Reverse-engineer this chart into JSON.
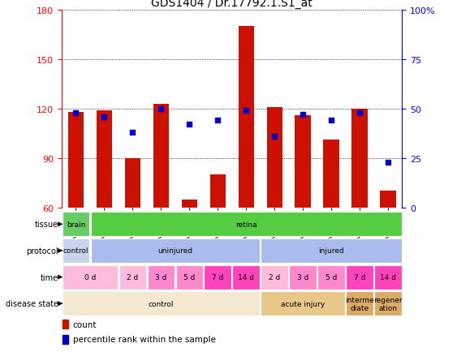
{
  "title": "GDS1404 / Dr.17792.1.S1_at",
  "samples": [
    "GSM74260",
    "GSM74261",
    "GSM74262",
    "GSM74282",
    "GSM74292",
    "GSM74286",
    "GSM74265",
    "GSM74264",
    "GSM74284",
    "GSM74295",
    "GSM74288",
    "GSM74267"
  ],
  "bar_heights": [
    118,
    119,
    90,
    123,
    65,
    80,
    170,
    121,
    116,
    101,
    120,
    70
  ],
  "percentile_values": [
    48,
    46,
    38,
    50,
    42,
    44,
    49,
    36,
    47,
    44,
    48,
    23
  ],
  "ylim_left": [
    60,
    180
  ],
  "ylim_right": [
    0,
    100
  ],
  "yticks_left": [
    60,
    90,
    120,
    150,
    180
  ],
  "yticks_right": [
    0,
    25,
    50,
    75,
    100
  ],
  "bar_color": "#cc1100",
  "dot_color": "#0000cc",
  "tissue_row": {
    "label": "tissue",
    "segments": [
      {
        "text": "brain",
        "start": 0,
        "end": 1,
        "color": "#66cc66"
      },
      {
        "text": "retina",
        "start": 1,
        "end": 12,
        "color": "#55cc44"
      }
    ]
  },
  "protocol_row": {
    "label": "protocol",
    "segments": [
      {
        "text": "control",
        "start": 0,
        "end": 1,
        "color": "#c8d4ee"
      },
      {
        "text": "uninjured",
        "start": 1,
        "end": 7,
        "color": "#aabbee"
      },
      {
        "text": "injured",
        "start": 7,
        "end": 12,
        "color": "#aabbee"
      }
    ]
  },
  "time_row": {
    "label": "time",
    "segments": [
      {
        "text": "0 d",
        "start": 0,
        "end": 2,
        "color": "#ffbbdd"
      },
      {
        "text": "2 d",
        "start": 2,
        "end": 3,
        "color": "#ffbbdd"
      },
      {
        "text": "3 d",
        "start": 3,
        "end": 4,
        "color": "#ff88cc"
      },
      {
        "text": "5 d",
        "start": 4,
        "end": 5,
        "color": "#ff88cc"
      },
      {
        "text": "7 d",
        "start": 5,
        "end": 6,
        "color": "#ff44bb"
      },
      {
        "text": "14 d",
        "start": 6,
        "end": 7,
        "color": "#ff44bb"
      },
      {
        "text": "2 d",
        "start": 7,
        "end": 8,
        "color": "#ffbbdd"
      },
      {
        "text": "3 d",
        "start": 8,
        "end": 9,
        "color": "#ff88cc"
      },
      {
        "text": "5 d",
        "start": 9,
        "end": 10,
        "color": "#ff88cc"
      },
      {
        "text": "7 d",
        "start": 10,
        "end": 11,
        "color": "#ff44bb"
      },
      {
        "text": "14 d",
        "start": 11,
        "end": 12,
        "color": "#ff44bb"
      }
    ]
  },
  "disease_row": {
    "label": "disease state",
    "segments": [
      {
        "text": "control",
        "start": 0,
        "end": 7,
        "color": "#f5e8d0"
      },
      {
        "text": "acute injury",
        "start": 7,
        "end": 10,
        "color": "#e8c888"
      },
      {
        "text": "interme\ndiate",
        "start": 10,
        "end": 11,
        "color": "#ddaa66"
      },
      {
        "text": "regener\nation",
        "start": 11,
        "end": 12,
        "color": "#ddaa66"
      }
    ]
  }
}
